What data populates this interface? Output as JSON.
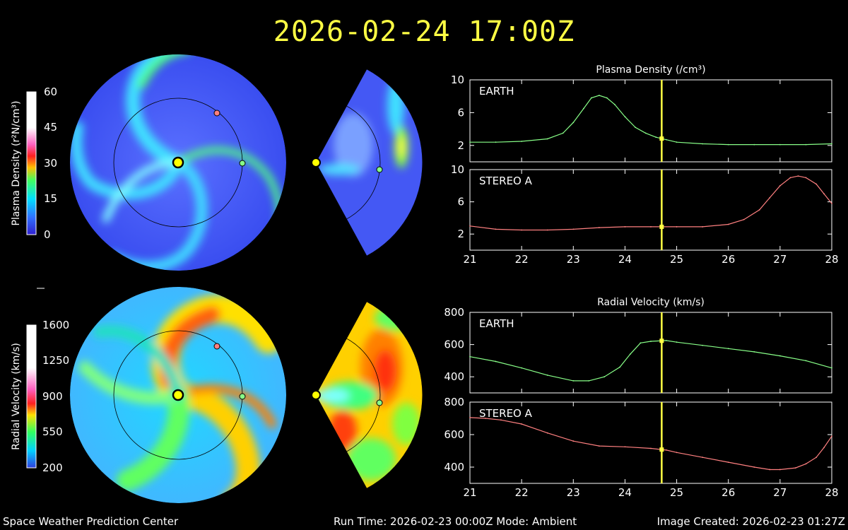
{
  "title": "2026-02-24 17:00Z",
  "footer": {
    "left": "Space Weather Prediction Center",
    "center": "Run Time: 2026-02-23 00:00Z  Mode: Ambient",
    "right": "Image Created: 2026-02-23 01:27Z"
  },
  "colorbars": [
    {
      "label": "Plasma Density (r²N/cm³)",
      "ticks": [
        "60",
        "45",
        "30",
        "15",
        "0"
      ]
    },
    {
      "label": "Radial Velocity (km/s)",
      "ticks": [
        "1600",
        "1250",
        "900",
        "550",
        "200"
      ]
    }
  ],
  "colors": {
    "earth": "#88ff88",
    "stereo": "#ff8080",
    "marker": "#ffff44",
    "title": "#ffff44"
  },
  "chart_data": [
    {
      "type": "line",
      "title": "Plasma Density (/cm³)",
      "panels": [
        {
          "name": "EARTH",
          "yticks": [
            2,
            6,
            10
          ],
          "ylim": [
            0,
            10
          ],
          "x": [
            21,
            21.5,
            22,
            22.5,
            22.8,
            23.0,
            23.2,
            23.35,
            23.5,
            23.65,
            23.8,
            24.0,
            24.2,
            24.4,
            24.6,
            24.8,
            25.0,
            25.5,
            26,
            26.5,
            27,
            27.5,
            28
          ],
          "values": [
            2.4,
            2.4,
            2.5,
            2.8,
            3.5,
            4.8,
            6.5,
            7.8,
            8.1,
            7.8,
            7.0,
            5.5,
            4.2,
            3.5,
            3.0,
            2.7,
            2.4,
            2.2,
            2.1,
            2.1,
            2.1,
            2.1,
            2.2
          ]
        },
        {
          "name": "STEREO A",
          "yticks": [
            2,
            6,
            10
          ],
          "ylim": [
            0,
            10
          ],
          "x": [
            21,
            21.5,
            22,
            22.5,
            23,
            23.5,
            24,
            24.5,
            25,
            25.5,
            26,
            26.3,
            26.6,
            26.8,
            27.0,
            27.2,
            27.35,
            27.5,
            27.7,
            27.85,
            28
          ],
          "values": [
            3.0,
            2.6,
            2.5,
            2.5,
            2.6,
            2.8,
            2.9,
            2.9,
            2.9,
            2.9,
            3.2,
            3.8,
            5.0,
            6.5,
            8.0,
            9.0,
            9.2,
            9.0,
            8.2,
            7.0,
            5.8
          ]
        }
      ],
      "xticks": [
        21,
        22,
        23,
        24,
        25,
        26,
        27,
        28
      ],
      "xlim": [
        21,
        28
      ],
      "current_x": 24.71
    },
    {
      "type": "line",
      "title": "Radial Velocity (km/s)",
      "panels": [
        {
          "name": "EARTH",
          "yticks": [
            400,
            600,
            800
          ],
          "ylim": [
            300,
            800
          ],
          "x": [
            21,
            21.5,
            22,
            22.5,
            23,
            23.3,
            23.6,
            23.9,
            24.1,
            24.3,
            24.5,
            24.8,
            25,
            25.5,
            26,
            26.5,
            27,
            27.5,
            28
          ],
          "values": [
            525,
            495,
            455,
            410,
            375,
            375,
            400,
            460,
            540,
            610,
            620,
            625,
            615,
            595,
            575,
            555,
            530,
            500,
            455
          ]
        },
        {
          "name": "STEREO A",
          "yticks": [
            400,
            600,
            800
          ],
          "ylim": [
            300,
            800
          ],
          "x": [
            21,
            21.3,
            21.6,
            22,
            22.5,
            23,
            23.5,
            24,
            24.5,
            24.8,
            25,
            25.5,
            26,
            26.5,
            26.8,
            27,
            27.3,
            27.5,
            27.7,
            27.85,
            28
          ],
          "values": [
            705,
            700,
            690,
            665,
            610,
            560,
            530,
            525,
            515,
            505,
            490,
            460,
            430,
            400,
            385,
            385,
            395,
            420,
            460,
            520,
            590
          ]
        }
      ],
      "xticks": [
        21,
        22,
        23,
        24,
        25,
        26,
        27,
        28
      ],
      "xlim": [
        21,
        28
      ],
      "current_x": 24.71
    }
  ]
}
